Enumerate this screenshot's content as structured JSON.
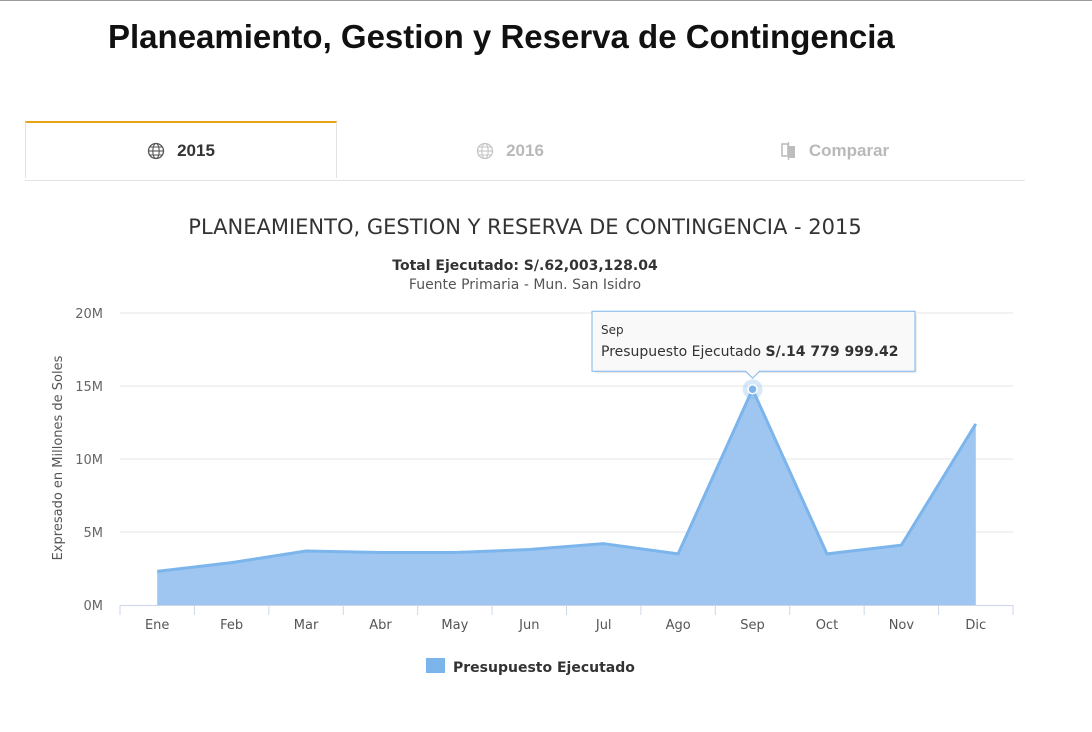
{
  "page": {
    "title": "Planeamiento, Gestion y Reserva de Contingencia"
  },
  "tabs": [
    {
      "label": "2015",
      "icon": "globe-icon",
      "active": true
    },
    {
      "label": "2016",
      "icon": "globe-icon",
      "active": false
    },
    {
      "label": "Comparar",
      "icon": "compare-icon",
      "active": false
    }
  ],
  "colors": {
    "accent": "#e8a317",
    "series": "#7cb5ec",
    "area": "#9ec6f0"
  },
  "chart_data": {
    "type": "area",
    "title": "PLANEAMIENTO, GESTION Y RESERVA DE CONTINGENCIA - 2015",
    "subtitle_bold": "Total Ejecutado",
    "subtitle_value": ": S/.62,003,128.04",
    "subtitle_line2": "Fuente Primaria - Mun. San Isidro",
    "ylabel": "Expresado en Millones de Soles",
    "xlabel": "",
    "categories": [
      "Ene",
      "Feb",
      "Mar",
      "Abr",
      "May",
      "Jun",
      "Jul",
      "Ago",
      "Sep",
      "Oct",
      "Nov",
      "Dic"
    ],
    "series": [
      {
        "name": "Presupuesto Ejecutado",
        "values": [
          2300000,
          2900000,
          3700000,
          3600000,
          3600000,
          3800000,
          4200000,
          3500000,
          14779999.42,
          3500000,
          4100000,
          12400000
        ]
      }
    ],
    "ylim": [
      0,
      20000000
    ],
    "yticks": [
      0,
      5000000,
      10000000,
      15000000,
      20000000
    ],
    "ytick_labels": [
      "0M",
      "5M",
      "10M",
      "15M",
      "20M"
    ],
    "grid": true,
    "legend": "bottom-center",
    "tooltip": {
      "category": "Sep",
      "label": "Presupuesto Ejecutado",
      "value": "S/.14 779 999.42",
      "index": 8
    }
  }
}
